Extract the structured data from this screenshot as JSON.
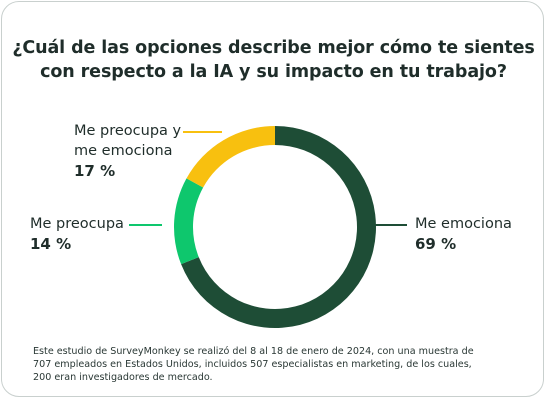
{
  "title": {
    "line1": "¿Cuál de las opciones describe mejor cómo te sientes",
    "line2": "con respecto a la IA y su impacto en tu trabajo?"
  },
  "chart_data": {
    "type": "pie",
    "title": "¿Cuál de las opciones describe mejor cómo te sientes con respecto a la IA y su impacto en tu trabajo?",
    "slices": [
      {
        "label": "Me emociona",
        "value": 69,
        "value_label": "69 %",
        "color": "#1e4d36"
      },
      {
        "label": "Me preocupa",
        "value": 14,
        "value_label": "14 %",
        "color": "#0ec76d"
      },
      {
        "label": "Me preocupa y me emociona",
        "value": 17,
        "value_label": "17 %",
        "color": "#f8c00f"
      }
    ]
  },
  "labels": {
    "emociona": {
      "name": "Me emociona",
      "pct": "69 %"
    },
    "preocupa": {
      "name": "Me preocupa",
      "pct": "14 %"
    },
    "ambos": {
      "name_line1": "Me preocupa y",
      "name_line2": "me emociona",
      "pct": "17 %"
    }
  },
  "footnote": {
    "line1": "Este estudio de SurveyMonkey se realizó del 8 al 18 de enero de 2024, con una muestra de",
    "line2": "707 empleados en Estados Unidos, incluidos 507 especialistas en marketing, de los cuales,",
    "line3": "200 eran investigadores de mercado."
  }
}
